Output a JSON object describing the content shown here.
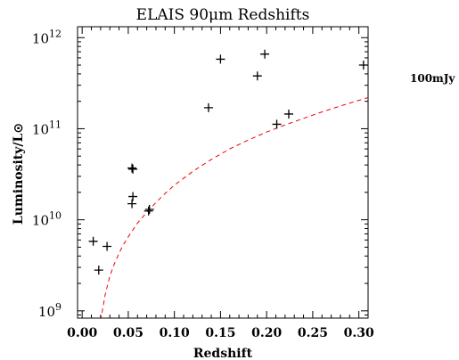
{
  "chart_data": {
    "type": "scatter",
    "title": "ELAIS 90μm Redshifts",
    "xlabel": "Redshift",
    "ylabel_text": "Luminosity/L",
    "ylabel_symbol": "⊙",
    "xlim": [
      -0.005,
      0.31
    ],
    "ylim_log10": [
      8.92,
      12.12
    ],
    "log_y": true,
    "grid": false,
    "x_ticks": [
      0.0,
      0.05,
      0.1,
      0.15,
      0.2,
      0.25,
      0.3
    ],
    "x_tick_labels": [
      "0.00",
      "0.05",
      "0.10",
      "0.15",
      "0.20",
      "0.25",
      "0.30"
    ],
    "y_ticks_exp": [
      9,
      10,
      11,
      12
    ],
    "y_tick_base": "10",
    "y_tick_exponents": [
      "9",
      "10",
      "11",
      "12"
    ],
    "points": [
      {
        "x": 0.012,
        "y": 5800000000.0
      },
      {
        "x": 0.018,
        "y": 2800000000.0
      },
      {
        "x": 0.027,
        "y": 5100000000.0
      },
      {
        "x": 0.054,
        "y": 37000000000.0
      },
      {
        "x": 0.055,
        "y": 36000000000.0
      },
      {
        "x": 0.055,
        "y": 18000000000.0
      },
      {
        "x": 0.054,
        "y": 15000000000.0
      },
      {
        "x": 0.072,
        "y": 12500000000.0
      },
      {
        "x": 0.073,
        "y": 13000000000.0
      },
      {
        "x": 0.137,
        "y": 170000000000.0
      },
      {
        "x": 0.15,
        "y": 580000000000.0
      },
      {
        "x": 0.19,
        "y": 380000000000.0
      },
      {
        "x": 0.198,
        "y": 660000000000.0
      },
      {
        "x": 0.211,
        "y": 112000000000.0
      },
      {
        "x": 0.224,
        "y": 145000000000.0
      },
      {
        "x": 0.305,
        "y": 500000000000.0
      }
    ],
    "curve": {
      "label": "100mJy",
      "color": "#ee0000",
      "style": "dashed",
      "x": [
        0.02,
        0.025,
        0.03,
        0.035,
        0.04,
        0.045,
        0.05,
        0.06,
        0.07,
        0.08,
        0.09,
        0.1,
        0.12,
        0.14,
        0.16,
        0.18,
        0.2,
        0.22,
        0.24,
        0.26,
        0.28,
        0.3,
        0.31
      ],
      "y": [
        780000000.0,
        1500000000.0,
        2400000000.0,
        3300000000.0,
        4300000000.0,
        5400000000.0,
        6500000000.0,
        9200000000.0,
        12000000000.0,
        15500000000.0,
        19500000000.0,
        24000000000.0,
        34000000000.0,
        46000000000.0,
        60000000000.0,
        75000000000.0,
        92000000000.0,
        110000000000.0,
        130000000000.0,
        153000000000.0,
        178000000000.0,
        205000000000.0,
        220000000000.0
      ]
    }
  }
}
